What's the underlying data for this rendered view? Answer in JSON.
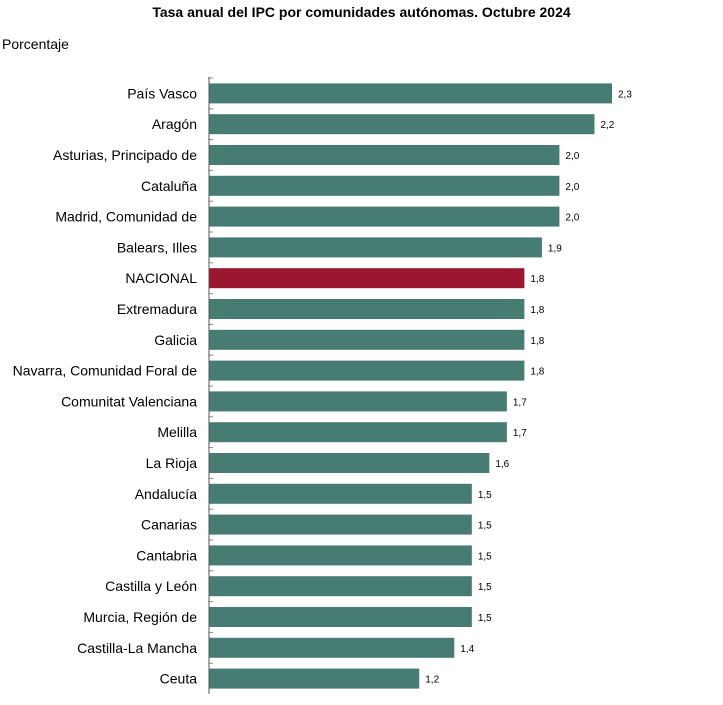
{
  "chart_data": {
    "type": "bar",
    "orientation": "horizontal",
    "title": "Tasa anual del IPC por comunidades autónomas. Octubre 2024",
    "units_label": "Porcentaje",
    "categories": [
      "País Vasco",
      "Aragón",
      "Asturias, Principado de",
      "Cataluña",
      "Madrid, Comunidad de",
      "Balears, Illes",
      "NACIONAL",
      "Extremadura",
      "Galicia",
      "Navarra, Comunidad Foral de",
      "Comunitat Valenciana",
      "Melilla",
      "La Rioja",
      "Andalucía",
      "Canarias",
      "Cantabria",
      "Castilla y León",
      "Murcia, Región de",
      "Castilla-La Mancha",
      "Ceuta"
    ],
    "values": [
      2.3,
      2.2,
      2.0,
      2.0,
      2.0,
      1.9,
      1.8,
      1.8,
      1.8,
      1.8,
      1.7,
      1.7,
      1.6,
      1.5,
      1.5,
      1.5,
      1.5,
      1.5,
      1.4,
      1.2
    ],
    "value_labels": [
      "2,3",
      "2,2",
      "2,0",
      "2,0",
      "2,0",
      "1,9",
      "1,8",
      "1,8",
      "1,8",
      "1,8",
      "1,7",
      "1,7",
      "1,6",
      "1,5",
      "1,5",
      "1,5",
      "1,5",
      "1,5",
      "1,4",
      "1,2"
    ],
    "xlim": [
      0,
      2.3
    ],
    "grid": false,
    "bar_color": "#467c72",
    "highlight_category": "NACIONAL",
    "highlight_color": "#9b1730"
  }
}
